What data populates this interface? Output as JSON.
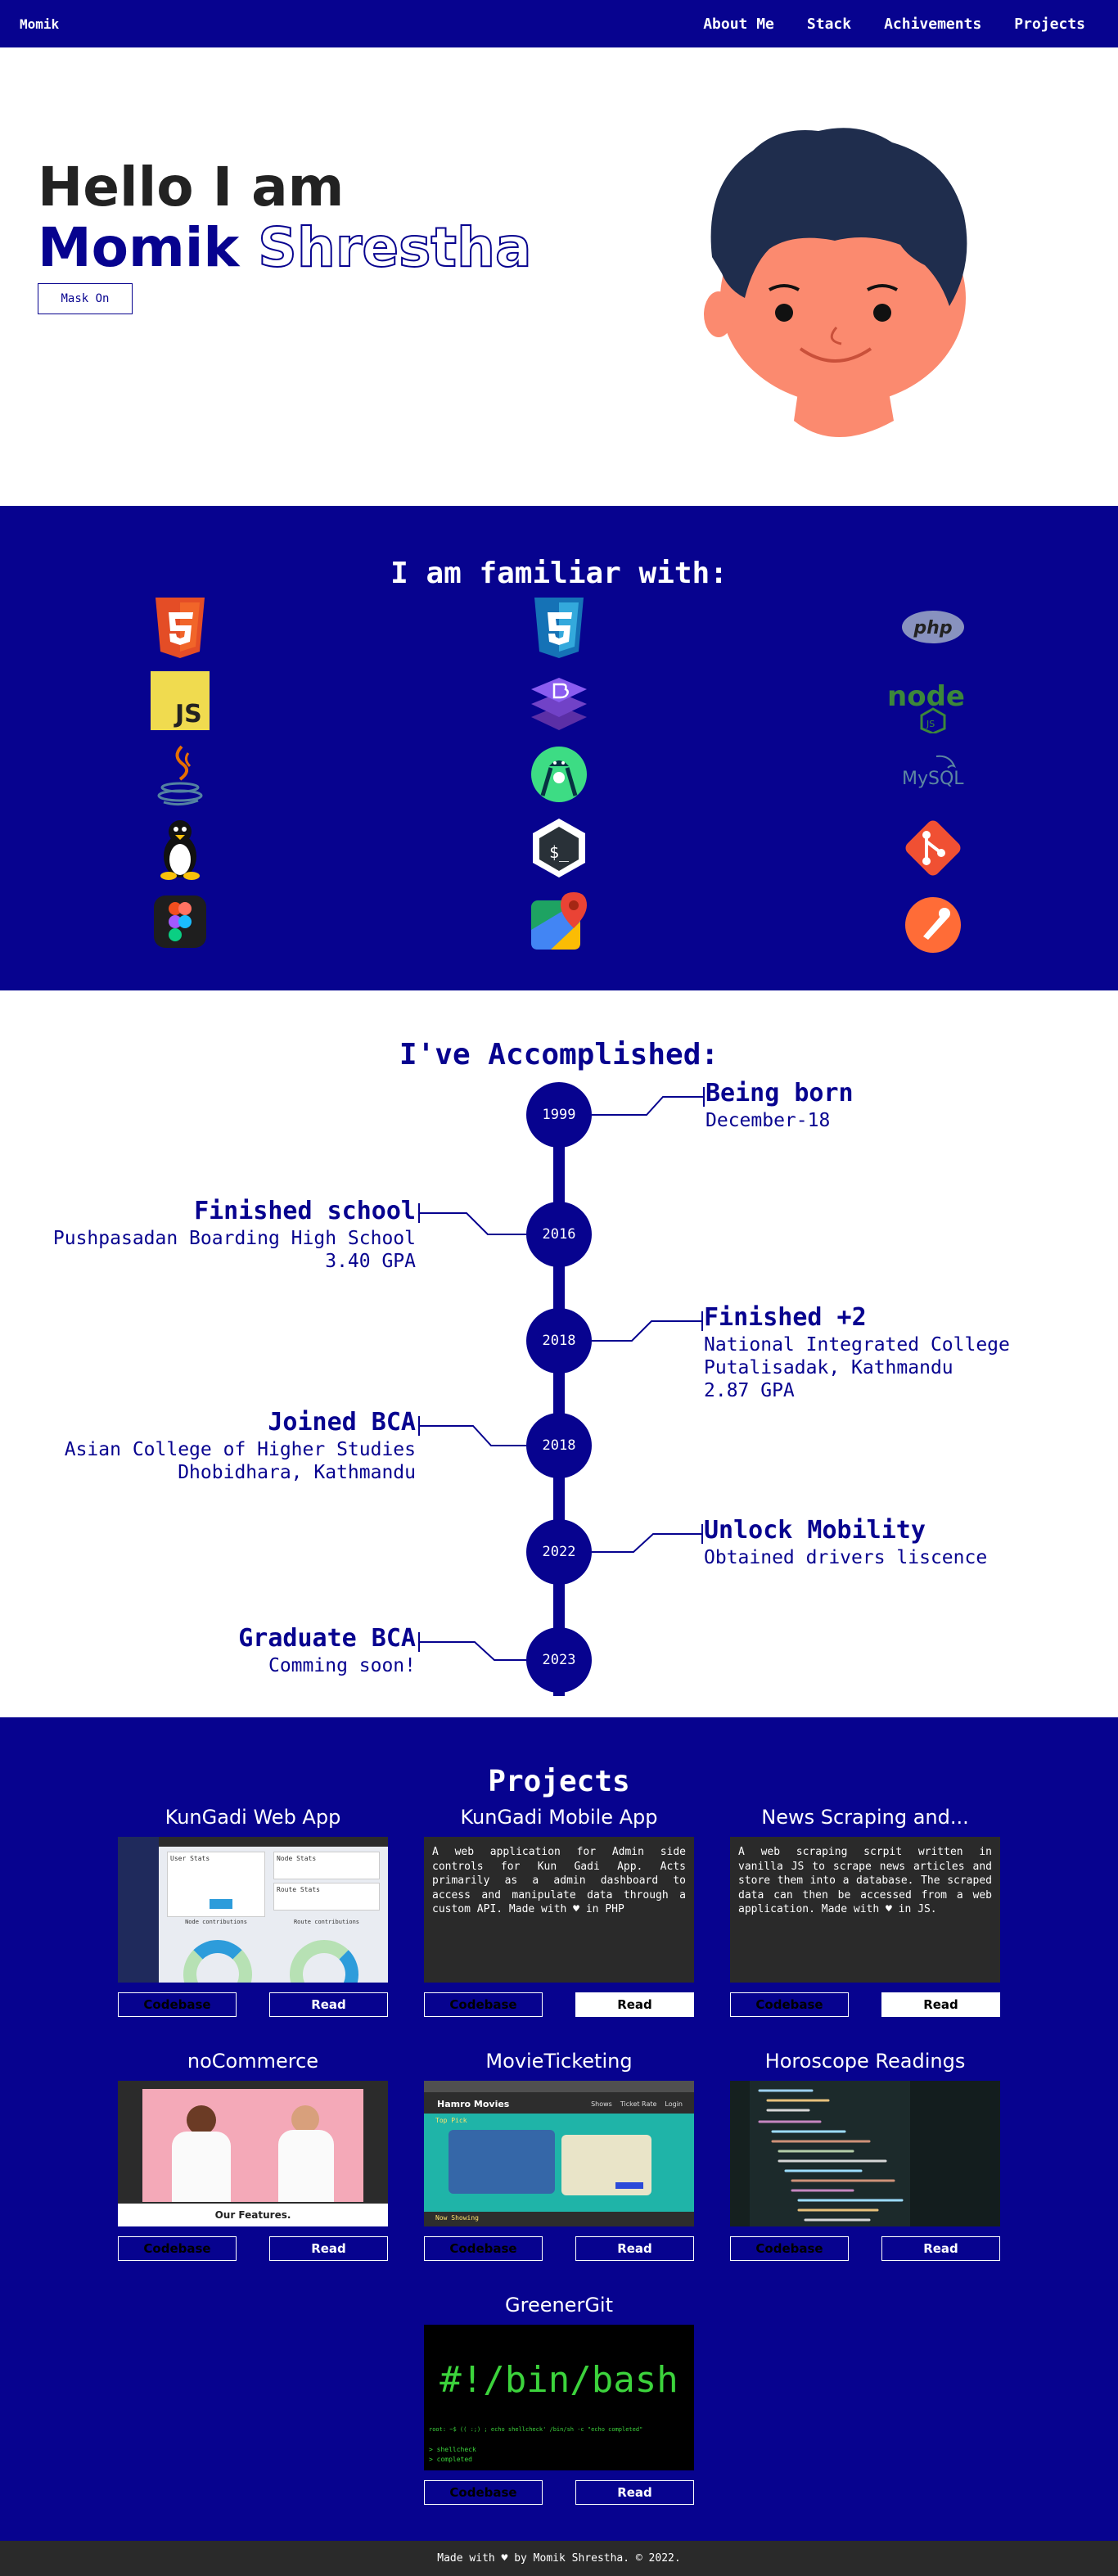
{
  "nav": {
    "brand": "Momik",
    "links": [
      "About Me",
      "Stack",
      "Achivements",
      "Projects"
    ]
  },
  "hero": {
    "greeting": "Hello I am",
    "first_name": "Momik",
    "last_name": "Shrestha",
    "mask_button": "Mask On"
  },
  "stack": {
    "title": "I am familiar with:",
    "icons": [
      "html5-icon",
      "javascript-icon",
      "java-icon",
      "linux-icon",
      "figma-icon",
      "css3-icon",
      "bootstrap-icon",
      "android-studio-icon",
      "bash-icon",
      "google-maps-icon",
      "php-icon",
      "nodejs-icon",
      "mysql-icon",
      "git-icon",
      "postman-icon"
    ],
    "labels": {
      "js": "JS",
      "php": "php",
      "node": "node",
      "nodejs_sub": "JS",
      "mysql": "MySQL",
      "bash": "$_"
    }
  },
  "timeline": {
    "title": "I've Accomplished:",
    "events": [
      {
        "year": "1999",
        "title": "Being born",
        "lines": [
          "December-18"
        ]
      },
      {
        "year": "2016",
        "title": "Finished school",
        "lines": [
          "Pushpasadan Boarding High School",
          "3.40 GPA"
        ]
      },
      {
        "year": "2018",
        "title": "Finished +2",
        "lines": [
          "National Integrated College",
          "Putalisadak, Kathmandu",
          "2.87 GPA"
        ]
      },
      {
        "year": "2018",
        "title": "Joined BCA",
        "lines": [
          "Asian College of Higher Studies",
          "Dhobidhara, Kathmandu"
        ]
      },
      {
        "year": "2022",
        "title": "Unlock Mobility",
        "lines": [
          "Obtained drivers liscence"
        ]
      },
      {
        "year": "2023",
        "title": "Graduate BCA",
        "lines": [
          "Comming soon!"
        ]
      }
    ]
  },
  "projects": {
    "title": "Projects",
    "code_label": "Codebase",
    "read_label": "Read",
    "items": [
      {
        "title": "KunGadi Web App",
        "description": ""
      },
      {
        "title": "KunGadi Mobile App",
        "description": "A web application for Admin side controls for Kun Gadi App. Acts primarily as a admin dashboard to access and manipulate data through a custom API. Made with ♥ in PHP"
      },
      {
        "title": "News Scraping and...",
        "description": "A web scraping scrpit written in vanilla JS to scrape news articles and store them into a database. The scraped data can then be accessed from a web application. Made with ♥ in JS."
      },
      {
        "title": "noCommerce",
        "description": ""
      },
      {
        "title": "MovieTicketing",
        "description": ""
      },
      {
        "title": "Horoscope Readings",
        "description": ""
      },
      {
        "title": "GreenerGit",
        "description": ""
      }
    ],
    "thumbs": {
      "web_dash_title": "User Stats",
      "web_dash_node": "Node Stats",
      "web_dash_route": "Route Stats",
      "web_dash_contrib": "Node contributions",
      "web_dash_route_contrib": "Route contributions",
      "nocommerce_caption": "Our Features.",
      "movies_brand": "Hamro Movies",
      "movies_nav": [
        "Shows",
        "Ticket Rate",
        "Login"
      ],
      "movies_top": "Top Pick",
      "movies_now": "Now Showing",
      "bash_text": "#!/bin/bash",
      "bash_cmd": "root: ~$ (( :;) ; echo shellcheck' /bin/sh -c \"echo completed\"",
      "bash_out1": "> shellcheck",
      "bash_out2": "> completed"
    }
  },
  "footer": {
    "text": "Made with ♥ by Momik Shrestha. © 2022."
  },
  "colors": {
    "primary": "#07038f",
    "dark": "#2a2a2a",
    "skin": "#fb8a6f",
    "hair": "#1f2d4d",
    "terminal_green": "#3cd33c"
  }
}
